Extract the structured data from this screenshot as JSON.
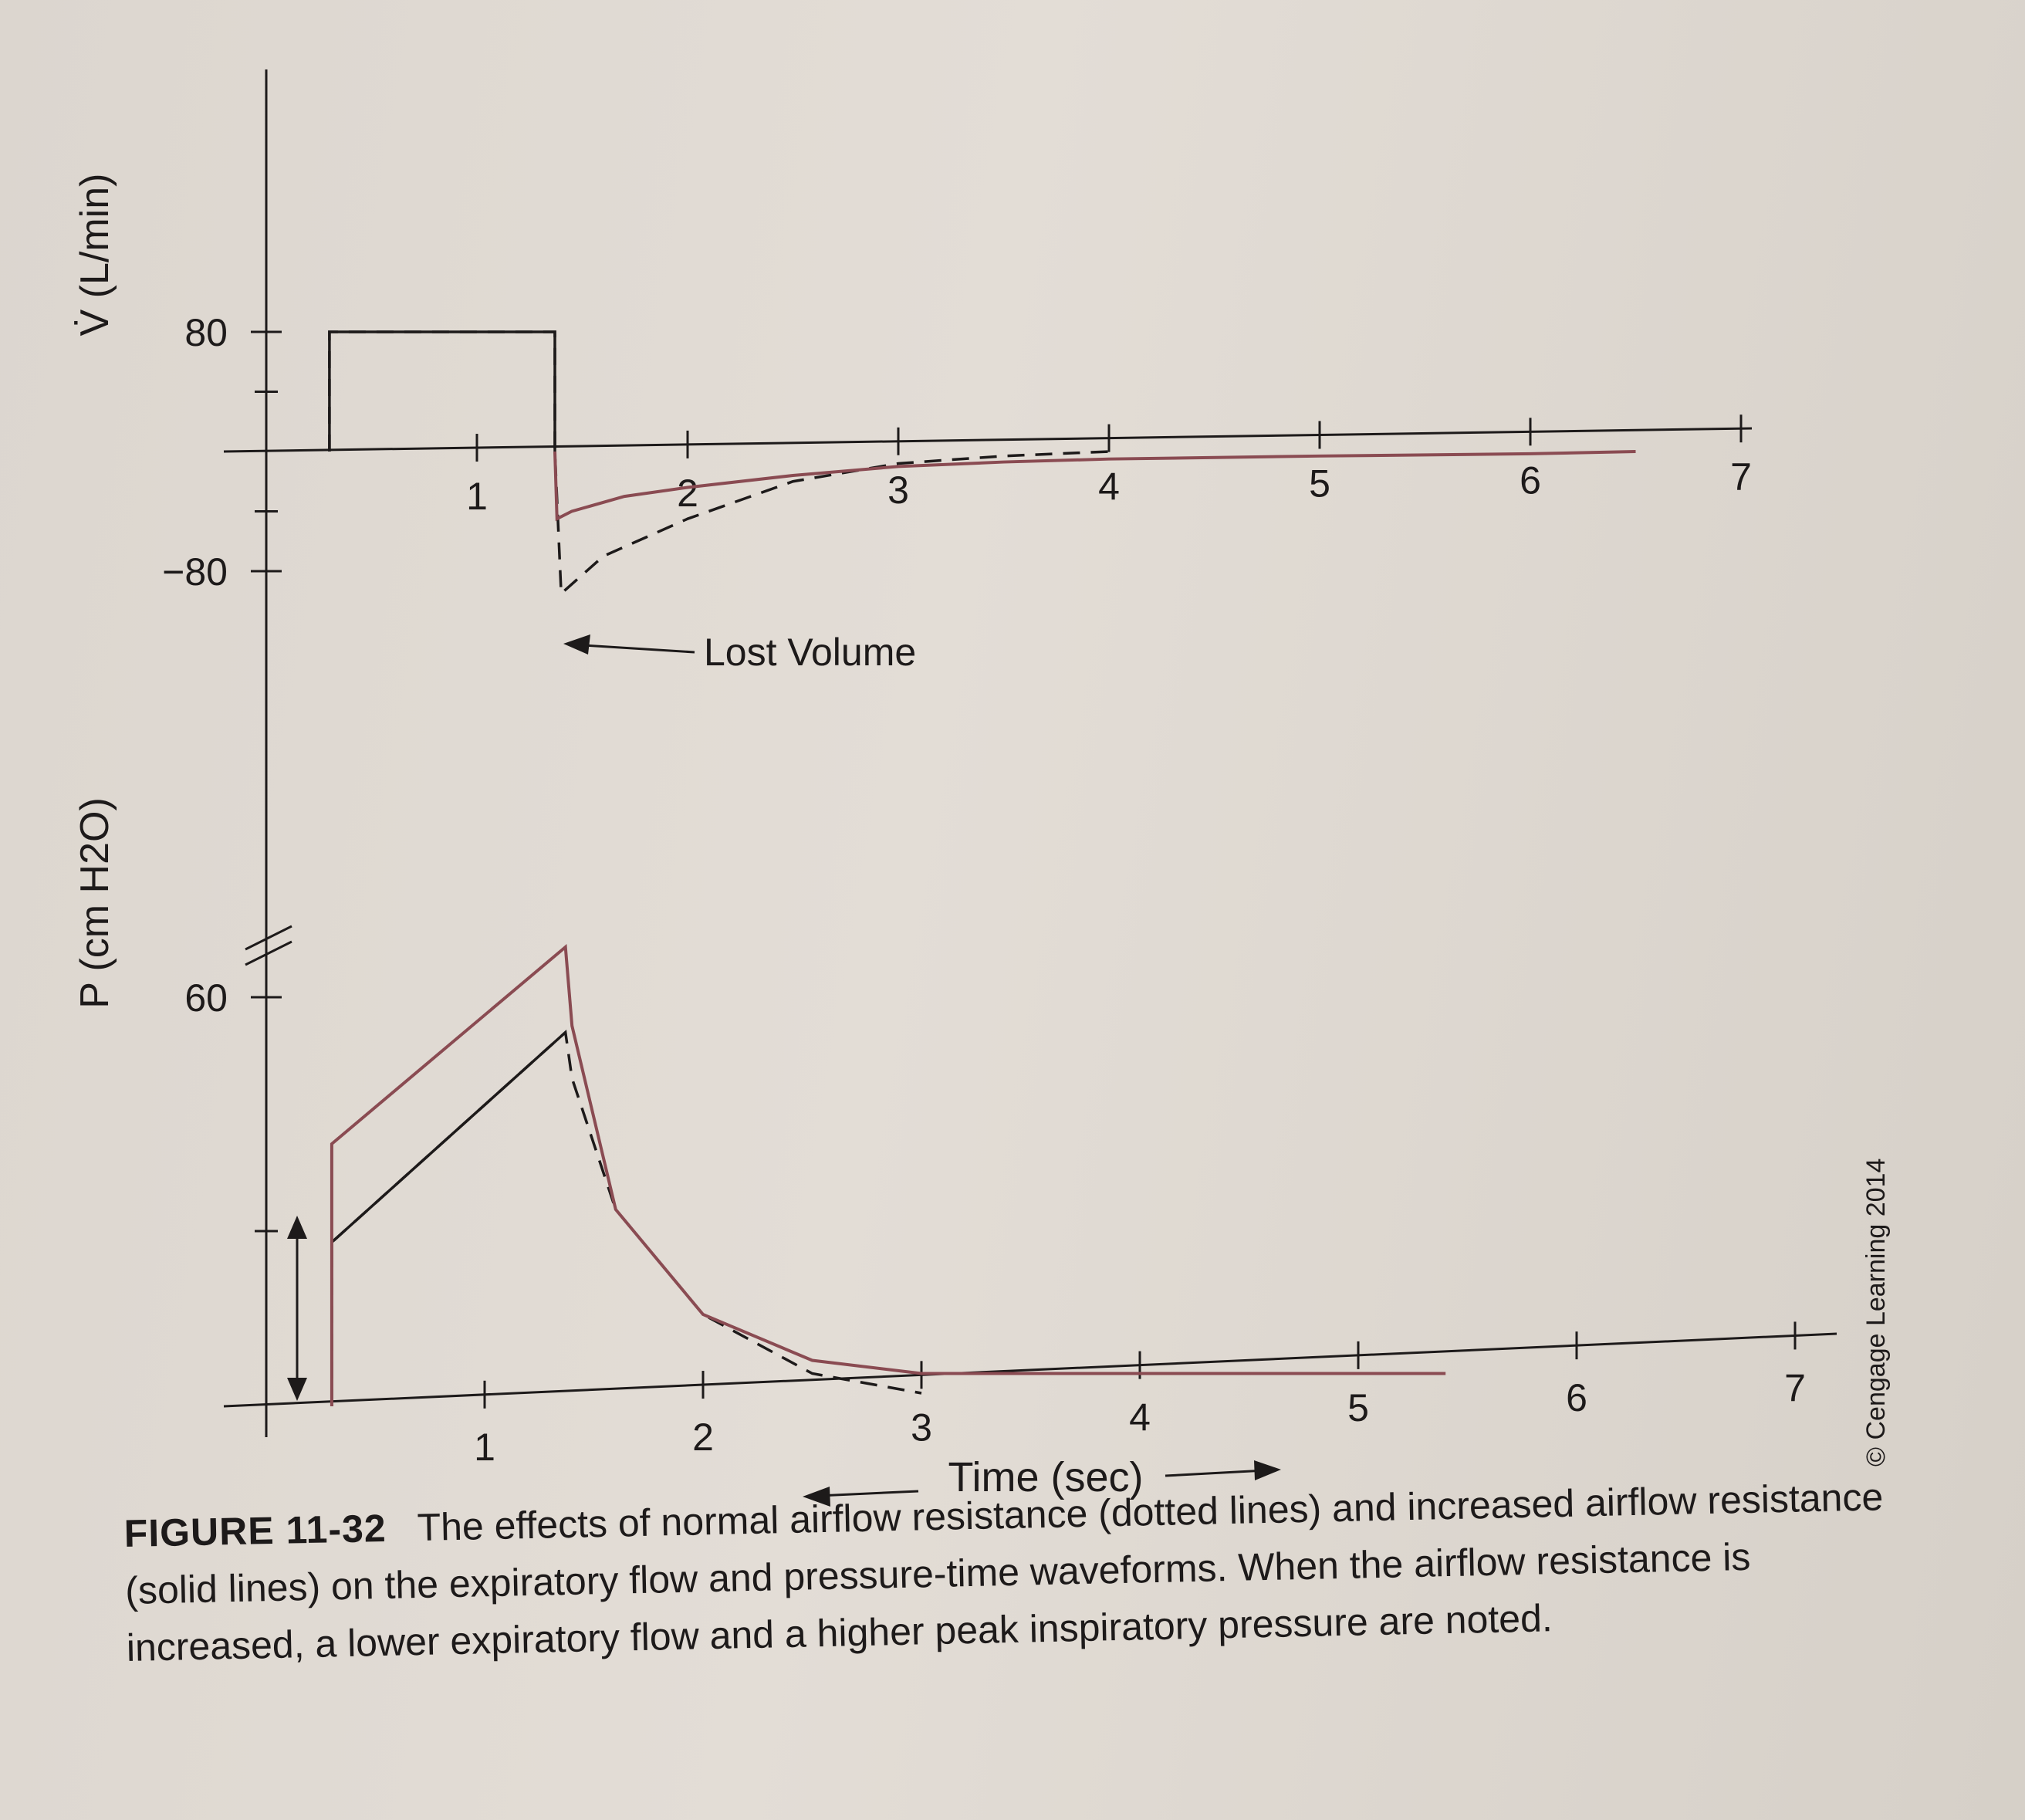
{
  "figure_label": "FIGURE 11-32",
  "caption_text": "The effects of normal airflow resistance (dotted lines) and increased airflow resistance (solid lines) on the expiratory flow and pressure-time waveforms. When the airflow resistance is increased, a lower expiratory flow and a higher peak inspiratory pressure are noted.",
  "copyright": "© Cengage Learning 2014",
  "colors": {
    "normal": "#1d1a1a",
    "increased": "#8a4b52",
    "axis": "#1d1a1a"
  },
  "chart_data": [
    {
      "type": "line",
      "ylabel": "V̇ (L/min)",
      "y_tick_labels": [
        "80",
        "−80"
      ],
      "x_tick_labels": [
        "1",
        "2",
        "3",
        "4",
        "5",
        "6",
        "7"
      ],
      "xlim": [
        0,
        7
      ],
      "annotation": "Lost Volume",
      "series": [
        {
          "x": [
            0.3,
            0.3,
            1.37,
            1.37,
            1.4,
            1.6,
            2.0,
            2.5,
            3.0,
            3.5,
            4.0
          ],
          "y": [
            0,
            80,
            80,
            0,
            -95,
            -70,
            -45,
            -20,
            -8,
            -3,
            0
          ]
        },
        {
          "x": [
            1.37,
            1.38,
            1.45,
            1.7,
            2.0,
            2.5,
            3.0,
            3.5,
            4.0,
            5.0,
            6.0,
            6.5
          ],
          "y": [
            0,
            -45,
            -40,
            -30,
            -24,
            -16,
            -10,
            -7,
            -5,
            -3,
            -1.5,
            0
          ]
        }
      ]
    },
    {
      "type": "line",
      "ylabel": "P (cm H2O)",
      "y_tick_labels": [
        "60"
      ],
      "x_tick_labels": [
        "1",
        "2",
        "3",
        "4",
        "5",
        "6",
        "7"
      ],
      "xlabel": "Time (sec)",
      "xlim": [
        0,
        7
      ],
      "series": [
        {
          "x": [
            0.3,
            0.3,
            1.37,
            1.4,
            1.6,
            2.0,
            2.5,
            3.0
          ],
          "y": [
            0,
            25,
            57,
            50,
            30,
            14,
            5,
            2
          ]
        },
        {
          "x": [
            0.3,
            0.3,
            1.37,
            1.4,
            1.6,
            2.0,
            2.5,
            3.0,
            4.0,
            5.0,
            5.4
          ],
          "y": [
            0,
            40,
            70,
            58,
            30,
            14,
            7,
            5,
            5,
            5,
            5
          ]
        }
      ]
    }
  ]
}
